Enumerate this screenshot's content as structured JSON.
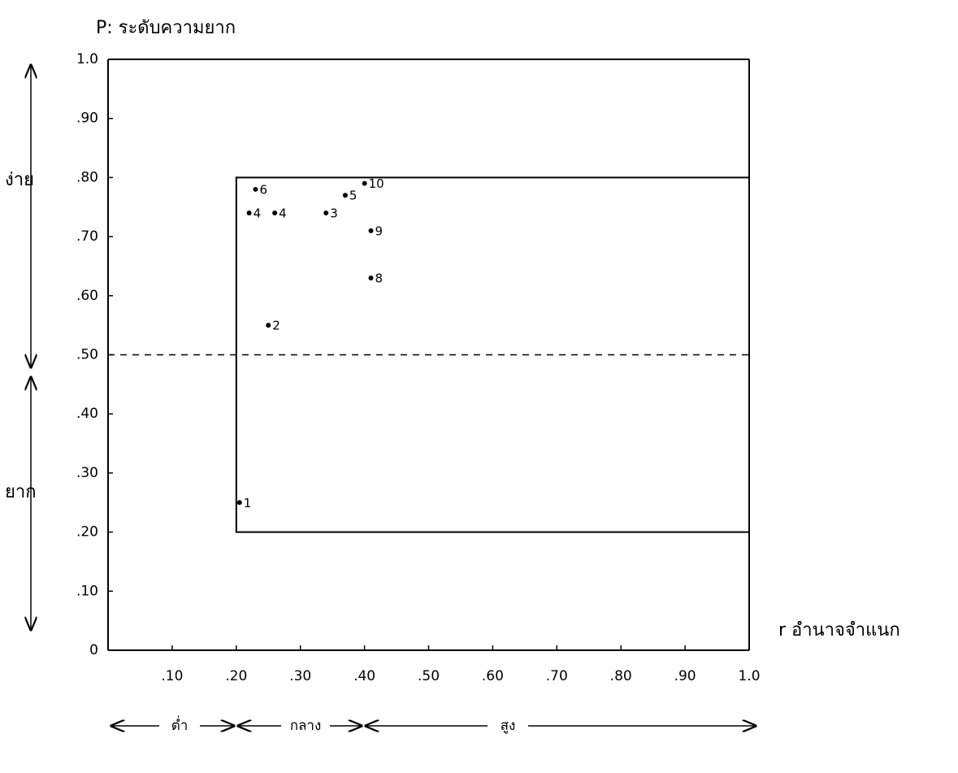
{
  "chart_data": {
    "type": "scatter",
    "title": "P: ระดับความยาก",
    "x_label": "r อำนาจจำแนก",
    "x": [
      0.205,
      0.25,
      0.34,
      0.22,
      0.26,
      0.37,
      0.23,
      0.41,
      0.41,
      0.4
    ],
    "y": [
      0.25,
      0.55,
      0.74,
      0.74,
      0.74,
      0.77,
      0.78,
      0.63,
      0.71,
      0.79
    ],
    "point_labels": [
      "1",
      "2",
      "3",
      "4",
      "4",
      "5",
      "6",
      "8",
      "9",
      "10"
    ],
    "color": "#000000",
    "xlim": [
      0,
      1
    ],
    "ylim": [
      0,
      1
    ],
    "xticks": [
      {
        "value": 0.1,
        "label": ".10"
      },
      {
        "value": 0.2,
        "label": ".20"
      },
      {
        "value": 0.3,
        "label": ".30"
      },
      {
        "value": 0.4,
        "label": ".40"
      },
      {
        "value": 0.5,
        "label": ".50"
      },
      {
        "value": 0.6,
        "label": ".60"
      },
      {
        "value": 0.7,
        "label": ".70"
      },
      {
        "value": 0.8,
        "label": ".80"
      },
      {
        "value": 0.9,
        "label": ".90"
      },
      {
        "value": 1,
        "label": "1.0"
      }
    ],
    "yticks": [
      0,
      {
        "value": 0.1,
        "label": ".10"
      },
      {
        "value": 0.2,
        "label": ".20"
      },
      {
        "value": 0.3,
        "label": ".30"
      },
      {
        "value": 0.4,
        "label": ".40"
      },
      {
        "value": 0.5,
        "label": ".50"
      },
      {
        "value": 0.6,
        "label": ".60"
      },
      {
        "value": 0.7,
        "label": ".70"
      },
      {
        "value": 0.8,
        "label": ".80"
      },
      {
        "value": 0.9,
        "label": ".90"
      },
      {
        "value": 1,
        "label": "1.0"
      }
    ],
    "box": {
      "x": [
        0.2,
        1
      ],
      "y": [
        0.2,
        0.8
      ]
    },
    "reference_line": 0.5,
    "y_bands": [
      "ง่าย",
      "ยาก"
    ],
    "x_bands": [
      "ต่ำ",
      "กลาง",
      "สูง"
    ]
  }
}
